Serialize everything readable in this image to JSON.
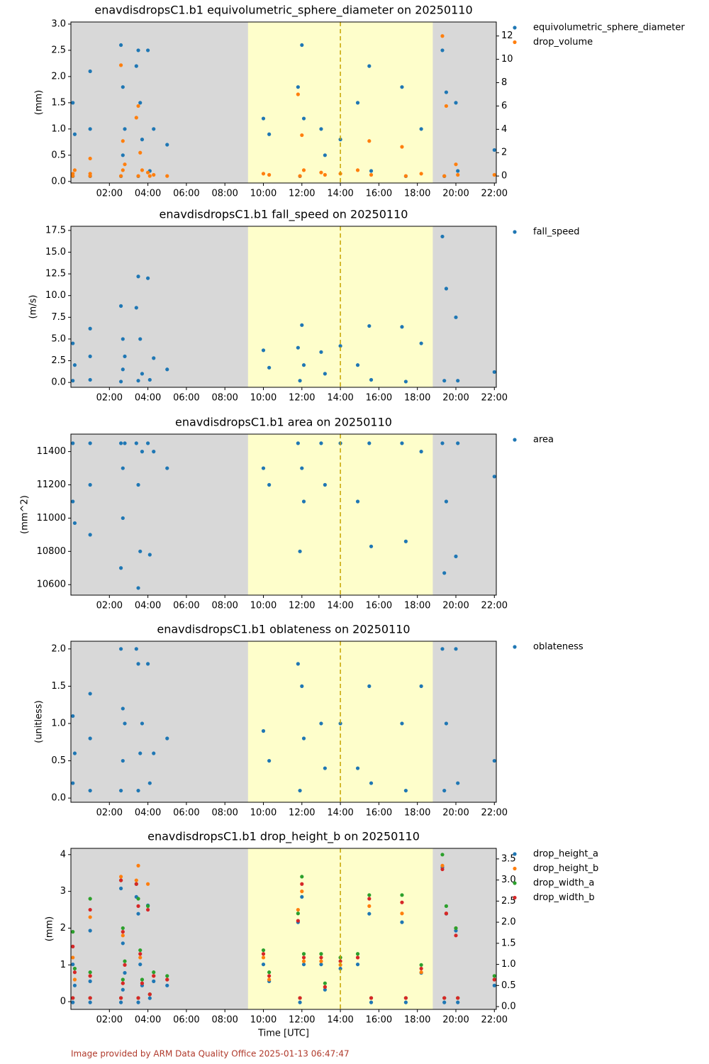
{
  "chart_data": [
    {
      "type": "scatter",
      "title": "enavdisdropsC1.b1 equivolumetric_sphere_diameter on 20250110",
      "ylabel": "(mm)",
      "x": [
        0.1,
        0.1,
        0.2,
        1.0,
        1.0,
        1.0,
        2.6,
        2.6,
        2.7,
        2.7,
        2.8,
        3.4,
        3.5,
        3.5,
        3.6,
        3.7,
        4.0,
        4.1,
        4.3,
        5.0,
        10.0,
        10.3,
        11.8,
        11.9,
        12.0,
        12.1,
        13.0,
        13.2,
        14.0,
        14.9,
        15.5,
        15.6,
        17.2,
        17.4,
        18.2,
        19.3,
        19.4,
        19.5,
        20.0,
        20.1,
        22.0
      ],
      "xlim": [
        0,
        22.1
      ],
      "xticks": [
        {
          "value": 2,
          "label": "02:00"
        },
        {
          "value": 4,
          "label": "04:00"
        },
        {
          "value": 6,
          "label": "06:00"
        },
        {
          "value": 8,
          "label": "08:00"
        },
        {
          "value": 10,
          "label": "10:00"
        },
        {
          "value": 12,
          "label": "12:00"
        },
        {
          "value": 14,
          "label": "14:00"
        },
        {
          "value": 16,
          "label": "16:00"
        },
        {
          "value": 18,
          "label": "18:00"
        },
        {
          "value": 20,
          "label": "20:00"
        },
        {
          "value": 22,
          "label": "22:00"
        }
      ],
      "ylim": [
        -0.03,
        3.04
      ],
      "yticks": [
        {
          "value": 0,
          "label": "0.0"
        },
        0.5,
        {
          "value": 1,
          "label": "1.0"
        },
        1.5,
        {
          "value": 2,
          "label": "2.0"
        },
        2.5,
        {
          "value": 3,
          "label": "3.0"
        }
      ],
      "y2lim": [
        -0.6,
        13.2
      ],
      "y2ticks": [
        0,
        2,
        4,
        6,
        8,
        10,
        12
      ],
      "daylight_span": [
        9.2,
        18.8
      ],
      "marker_line": 14.0,
      "legend": "outside right",
      "series": [
        {
          "name": "equivolumetric_sphere_diameter",
          "color": "#1f77b4",
          "values": [
            1.5,
            0.1,
            0.9,
            2.1,
            0.1,
            1.0,
            2.6,
            0.1,
            1.8,
            0.5,
            1.0,
            2.2,
            2.5,
            0.1,
            1.5,
            0.8,
            2.5,
            0.2,
            1.0,
            0.7,
            1.2,
            0.9,
            1.8,
            0.1,
            2.6,
            1.2,
            1.0,
            0.5,
            0.8,
            1.5,
            2.2,
            0.2,
            1.8,
            0.1,
            1.0,
            2.5,
            0.1,
            1.7,
            1.5,
            0.2,
            0.6
          ]
        },
        {
          "name": "drop_volume",
          "color": "#ff7f0e",
          "axis": "y2",
          "values": [
            0.2,
            0,
            0.5,
            1.5,
            0,
            0.2,
            9.5,
            0,
            3.0,
            0.5,
            1.0,
            5.0,
            6.0,
            0,
            2.0,
            0.5,
            0.3,
            0,
            0.1,
            0,
            0.2,
            0.1,
            7.0,
            0,
            3.5,
            0.5,
            0.3,
            0.1,
            0.2,
            0.5,
            3.0,
            0.1,
            2.5,
            0,
            0.2,
            12.0,
            0,
            6.0,
            1.0,
            0.1,
            0.1
          ]
        }
      ]
    },
    {
      "type": "scatter",
      "title": "enavdisdropsC1.b1 fall_speed on 20250110",
      "ylabel": "(m/s)",
      "x": [
        0.1,
        0.1,
        0.2,
        1.0,
        1.0,
        1.0,
        2.6,
        2.6,
        2.7,
        2.7,
        2.8,
        3.4,
        3.5,
        3.5,
        3.6,
        3.7,
        4.0,
        4.1,
        4.3,
        5.0,
        10.0,
        10.3,
        11.8,
        11.9,
        12.0,
        12.1,
        13.0,
        13.2,
        14.0,
        14.9,
        15.5,
        15.6,
        17.2,
        17.4,
        18.2,
        19.3,
        19.4,
        19.5,
        20.0,
        20.1,
        22.0
      ],
      "xlim": [
        0,
        22.1
      ],
      "xticks": [
        {
          "value": 2,
          "label": "02:00"
        },
        {
          "value": 4,
          "label": "04:00"
        },
        {
          "value": 6,
          "label": "06:00"
        },
        {
          "value": 8,
          "label": "08:00"
        },
        {
          "value": 10,
          "label": "10:00"
        },
        {
          "value": 12,
          "label": "12:00"
        },
        {
          "value": 14,
          "label": "14:00"
        },
        {
          "value": 16,
          "label": "16:00"
        },
        {
          "value": 18,
          "label": "18:00"
        },
        {
          "value": 20,
          "label": "20:00"
        },
        {
          "value": 22,
          "label": "22:00"
        }
      ],
      "ylim": [
        -0.56,
        17.98
      ],
      "yticks": [
        {
          "value": 0,
          "label": "0.0"
        },
        2.5,
        {
          "value": 5,
          "label": "5.0"
        },
        7.5,
        {
          "value": 10,
          "label": "10.0"
        },
        12.5,
        {
          "value": 15,
          "label": "15.0"
        },
        17.5
      ],
      "daylight_span": [
        9.2,
        18.8
      ],
      "marker_line": 14.0,
      "legend": "outside right",
      "series": [
        {
          "name": "fall_speed",
          "color": "#1f77b4",
          "values": [
            4.5,
            0.2,
            2.0,
            6.2,
            0.3,
            3.0,
            8.8,
            0.1,
            5.0,
            1.5,
            3.0,
            8.6,
            12.2,
            0.2,
            5.0,
            1.0,
            12.0,
            0.3,
            2.8,
            1.5,
            3.7,
            1.7,
            4.0,
            0.2,
            6.6,
            2.0,
            3.5,
            1.0,
            4.2,
            2.0,
            6.5,
            0.3,
            6.4,
            0.1,
            4.5,
            16.8,
            0.2,
            10.8,
            7.5,
            0.2,
            1.2
          ]
        }
      ]
    },
    {
      "type": "scatter",
      "title": "enavdisdropsC1.b1 area on 20250110",
      "ylabel": "(mm^2)",
      "x": [
        0.1,
        0.1,
        0.2,
        1.0,
        1.0,
        1.0,
        2.6,
        2.6,
        2.7,
        2.7,
        2.8,
        3.4,
        3.5,
        3.5,
        3.6,
        3.7,
        4.0,
        4.1,
        4.3,
        5.0,
        10.0,
        10.3,
        11.8,
        11.9,
        12.0,
        12.1,
        13.0,
        13.2,
        14.0,
        14.9,
        15.5,
        15.6,
        17.2,
        17.4,
        18.2,
        19.3,
        19.4,
        19.5,
        20.0,
        20.1,
        22.0
      ],
      "xlim": [
        0,
        22.1
      ],
      "xticks": [
        {
          "value": 2,
          "label": "02:00"
        },
        {
          "value": 4,
          "label": "04:00"
        },
        {
          "value": 6,
          "label": "06:00"
        },
        {
          "value": 8,
          "label": "08:00"
        },
        {
          "value": 10,
          "label": "10:00"
        },
        {
          "value": 12,
          "label": "12:00"
        },
        {
          "value": 14,
          "label": "14:00"
        },
        {
          "value": 16,
          "label": "16:00"
        },
        {
          "value": 18,
          "label": "18:00"
        },
        {
          "value": 20,
          "label": "20:00"
        },
        {
          "value": 22,
          "label": "22:00"
        }
      ],
      "ylim": [
        10537,
        11505
      ],
      "yticks": [
        10600,
        10800,
        11000,
        11200,
        11400
      ],
      "daylight_span": [
        9.2,
        18.8
      ],
      "marker_line": 14.0,
      "legend": "outside right",
      "series": [
        {
          "name": "area",
          "color": "#1f77b4",
          "values": [
            11450,
            11100,
            10970,
            11450,
            10900,
            11200,
            11450,
            10700,
            11000,
            11300,
            11450,
            11450,
            10580,
            11200,
            10800,
            11400,
            11450,
            10780,
            11400,
            11300,
            11300,
            11200,
            11450,
            10800,
            11300,
            11100,
            11450,
            11200,
            11450,
            11100,
            11450,
            10830,
            11450,
            10860,
            11400,
            11450,
            10670,
            11100,
            10770,
            11450,
            11250
          ]
        }
      ]
    },
    {
      "type": "scatter",
      "title": "enavdisdropsC1.b1 oblateness on 20250110",
      "ylabel": "(unitless)",
      "x": [
        0.1,
        0.1,
        0.2,
        1.0,
        1.0,
        1.0,
        2.6,
        2.6,
        2.7,
        2.7,
        2.8,
        3.4,
        3.5,
        3.5,
        3.6,
        3.7,
        4.0,
        4.1,
        4.3,
        5.0,
        10.0,
        10.3,
        11.8,
        11.9,
        12.0,
        12.1,
        13.0,
        13.2,
        14.0,
        14.9,
        15.5,
        15.6,
        17.2,
        17.4,
        18.2,
        19.3,
        19.4,
        19.5,
        20.0,
        20.1,
        22.0
      ],
      "xlim": [
        0,
        22.1
      ],
      "xticks": [
        {
          "value": 2,
          "label": "02:00"
        },
        {
          "value": 4,
          "label": "04:00"
        },
        {
          "value": 6,
          "label": "06:00"
        },
        {
          "value": 8,
          "label": "08:00"
        },
        {
          "value": 10,
          "label": "10:00"
        },
        {
          "value": 12,
          "label": "12:00"
        },
        {
          "value": 14,
          "label": "14:00"
        },
        {
          "value": 16,
          "label": "16:00"
        },
        {
          "value": 18,
          "label": "18:00"
        },
        {
          "value": 20,
          "label": "20:00"
        },
        {
          "value": 22,
          "label": "22:00"
        }
      ],
      "ylim": [
        -0.056,
        2.103
      ],
      "yticks": [
        {
          "value": 0,
          "label": "0.0"
        },
        0.5,
        {
          "value": 1,
          "label": "1.0"
        },
        1.5,
        {
          "value": 2,
          "label": "2.0"
        }
      ],
      "daylight_span": [
        9.2,
        18.8
      ],
      "marker_line": 14.0,
      "legend": "outside right",
      "series": [
        {
          "name": "oblateness",
          "color": "#1f77b4",
          "values": [
            1.1,
            0.2,
            0.6,
            1.4,
            0.1,
            0.8,
            2.0,
            0.1,
            1.2,
            0.5,
            1.0,
            2.0,
            1.8,
            0.1,
            0.6,
            1.0,
            1.8,
            0.2,
            0.6,
            0.8,
            0.9,
            0.5,
            1.8,
            0.1,
            1.5,
            0.8,
            1.0,
            0.4,
            1.0,
            0.4,
            1.5,
            0.2,
            1.0,
            0.1,
            1.5,
            2.0,
            0.1,
            1.0,
            2.0,
            0.2,
            0.5
          ]
        }
      ]
    },
    {
      "type": "scatter",
      "title": "enavdisdropsC1.b1 drop_height_b on 20250110",
      "ylabel": "(mm)",
      "xlabel": "Time [UTC]",
      "x": [
        0.1,
        0.1,
        0.2,
        1.0,
        1.0,
        1.0,
        2.6,
        2.6,
        2.7,
        2.7,
        2.8,
        3.4,
        3.5,
        3.5,
        3.6,
        3.7,
        4.0,
        4.1,
        4.3,
        5.0,
        10.0,
        10.3,
        11.8,
        11.9,
        12.0,
        12.1,
        13.0,
        13.2,
        14.0,
        14.9,
        15.5,
        15.6,
        17.2,
        17.4,
        18.2,
        19.3,
        19.4,
        19.5,
        20.0,
        20.1,
        22.0
      ],
      "xlim": [
        0,
        22.1
      ],
      "xticks": [
        {
          "value": 2,
          "label": "02:00"
        },
        {
          "value": 4,
          "label": "04:00"
        },
        {
          "value": 6,
          "label": "06:00"
        },
        {
          "value": 8,
          "label": "08:00"
        },
        {
          "value": 10,
          "label": "10:00"
        },
        {
          "value": 12,
          "label": "12:00"
        },
        {
          "value": 14,
          "label": "14:00"
        },
        {
          "value": 16,
          "label": "16:00"
        },
        {
          "value": 18,
          "label": "18:00"
        },
        {
          "value": 20,
          "label": "20:00"
        },
        {
          "value": 22,
          "label": "22:00"
        }
      ],
      "ylim": [
        -0.21,
        4.17
      ],
      "yticks": [
        0,
        1,
        2,
        3,
        4
      ],
      "y2lim": [
        -0.066,
        3.75
      ],
      "y2ticks": [
        {
          "value": 0,
          "label": "0.0"
        },
        0.5,
        {
          "value": 1,
          "label": "1.0"
        },
        1.5,
        {
          "value": 2,
          "label": "2.0"
        },
        2.5,
        {
          "value": 3,
          "label": "3.0"
        },
        3.5
      ],
      "daylight_span": [
        9.2,
        18.8
      ],
      "marker_line": 14.0,
      "legend": "outside right",
      "series": [
        {
          "name": "drop_height_a",
          "color": "#1f77b4",
          "axis": "y2",
          "values": [
            1.0,
            0.1,
            0.5,
            1.8,
            0.1,
            0.6,
            2.8,
            0.1,
            1.5,
            0.4,
            0.8,
            2.6,
            2.2,
            0.1,
            1.0,
            0.5,
            2.4,
            0.2,
            0.6,
            0.5,
            1.0,
            0.6,
            2.0,
            0.1,
            2.6,
            1.0,
            1.0,
            0.4,
            0.9,
            1.0,
            2.2,
            0.1,
            2.0,
            0.1,
            0.8,
            3.3,
            0.1,
            2.2,
            1.8,
            0.1,
            0.5
          ]
        },
        {
          "name": "drop_height_b",
          "color": "#ff7f0e",
          "values": [
            1.2,
            0.1,
            0.6,
            2.3,
            0.1,
            0.7,
            3.4,
            0.1,
            1.8,
            0.5,
            1.0,
            3.3,
            3.7,
            0.1,
            1.2,
            0.5,
            3.2,
            0.2,
            0.7,
            0.6,
            1.2,
            0.6,
            2.5,
            0.1,
            3.0,
            1.1,
            1.1,
            0.4,
            1.0,
            1.2,
            2.6,
            0.1,
            2.4,
            0.1,
            0.8,
            3.7,
            0.1,
            2.4,
            2.0,
            0.1,
            0.6
          ]
        },
        {
          "name": "drop_width_a",
          "color": "#2ca02c",
          "values": [
            1.9,
            0.1,
            0.9,
            2.8,
            0.1,
            0.8,
            3.3,
            0.1,
            2.0,
            0.6,
            1.1,
            3.2,
            2.8,
            0.1,
            1.4,
            0.6,
            2.6,
            0.2,
            0.8,
            0.7,
            1.4,
            0.8,
            2.4,
            0.1,
            3.4,
            1.3,
            1.3,
            0.5,
            1.2,
            1.3,
            2.9,
            0.1,
            2.9,
            0.1,
            1.0,
            4.0,
            0.1,
            2.6,
            2.0,
            0.1,
            0.7
          ]
        },
        {
          "name": "drop_width_b",
          "color": "#d62728",
          "values": [
            1.5,
            0.1,
            0.8,
            2.5,
            0.1,
            0.7,
            3.3,
            0.1,
            1.9,
            0.5,
            1.0,
            3.2,
            2.6,
            0.1,
            1.3,
            0.5,
            2.5,
            0.2,
            0.7,
            0.6,
            1.3,
            0.7,
            2.2,
            0.1,
            3.2,
            1.2,
            1.2,
            0.4,
            1.1,
            1.2,
            2.8,
            0.1,
            2.7,
            0.1,
            0.9,
            3.6,
            0.1,
            2.4,
            1.8,
            0.1,
            0.6
          ]
        }
      ]
    }
  ],
  "footer": "Image provided by ARM Data Quality Office 2025-01-13 06:47:47"
}
